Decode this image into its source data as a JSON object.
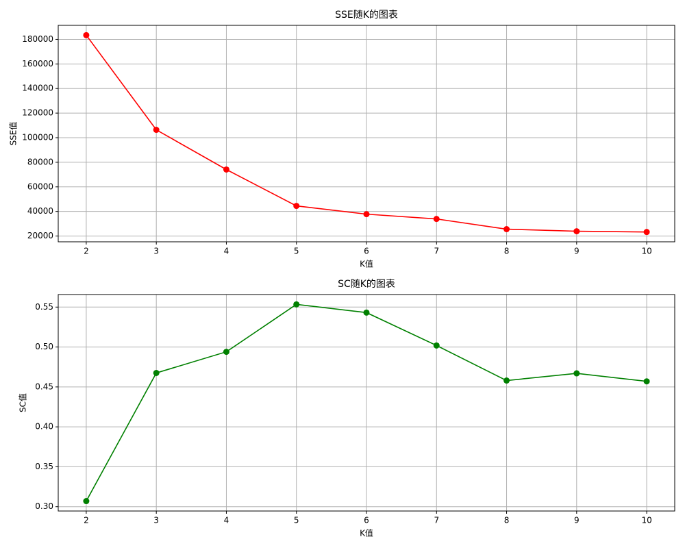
{
  "chart_data": [
    {
      "type": "line",
      "title": "SSE随K的图表",
      "xlabel": "K值",
      "ylabel": "SSE值",
      "x": [
        2,
        3,
        4,
        5,
        6,
        7,
        8,
        9,
        10
      ],
      "values": [
        183400,
        106400,
        74100,
        44500,
        37800,
        33900,
        25600,
        23900,
        23300
      ],
      "color": "#ff0000",
      "marker": "o",
      "xlim": [
        1.6,
        10.4
      ],
      "xticks": [
        2,
        3,
        4,
        5,
        6,
        7,
        8,
        9,
        10
      ],
      "ylim": [
        15300,
        191400
      ],
      "yticks": [
        20000,
        40000,
        60000,
        80000,
        100000,
        120000,
        140000,
        160000,
        180000
      ],
      "grid": true
    },
    {
      "type": "line",
      "title": "SC随K的图表",
      "xlabel": "K值",
      "ylabel": "SC值",
      "x": [
        2,
        3,
        4,
        5,
        6,
        7,
        8,
        9,
        10
      ],
      "values": [
        0.307,
        0.4675,
        0.494,
        0.5534,
        0.5431,
        0.5019,
        0.458,
        0.467,
        0.457
      ],
      "color": "#008000",
      "marker": "o",
      "xlim": [
        1.6,
        10.4
      ],
      "xticks": [
        2,
        3,
        4,
        5,
        6,
        7,
        8,
        9,
        10
      ],
      "ylim": [
        0.2946,
        0.5657
      ],
      "yticks": [
        {
          "value": 0.3,
          "label": "0.30"
        },
        0.35,
        {
          "value": 0.4,
          "label": "0.40"
        },
        0.45,
        {
          "value": 0.5,
          "label": "0.50"
        },
        0.55
      ],
      "grid": true
    }
  ]
}
